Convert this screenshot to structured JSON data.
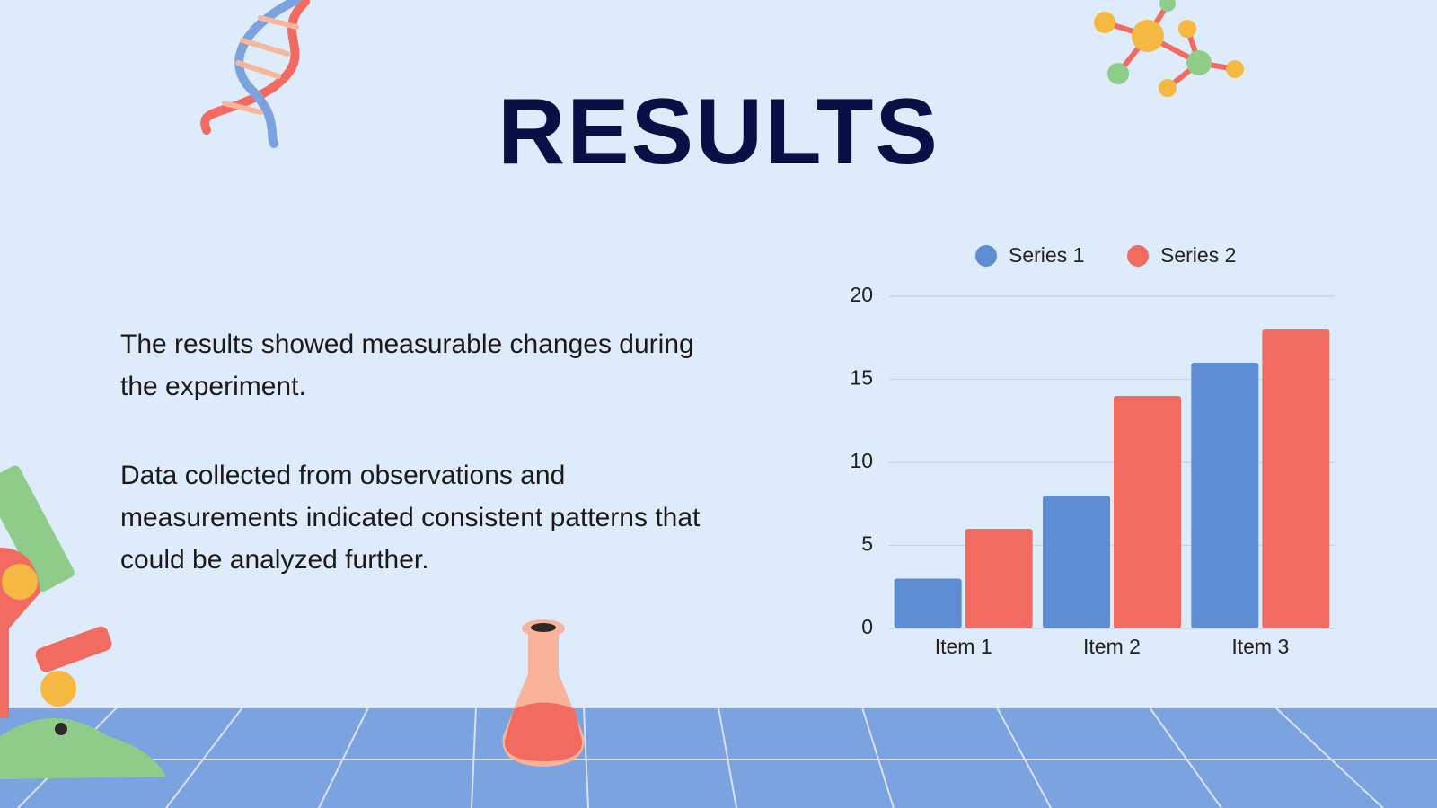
{
  "title": "RESULTS",
  "paragraphs": [
    "The results showed measurable changes during the experiment.",
    "Data collected from observations and measurements indicated consistent patterns that could be analyzed further."
  ],
  "chart_data": {
    "type": "bar",
    "categories": [
      "Item 1",
      "Item 2",
      "Item 3"
    ],
    "series": [
      {
        "name": "Series 1",
        "color": "#5f8dd3",
        "values": [
          3,
          8,
          16
        ]
      },
      {
        "name": "Series 2",
        "color": "#f26b61",
        "values": [
          6,
          14,
          18
        ]
      }
    ],
    "ylim": [
      0,
      20
    ],
    "yticks": [
      0,
      5,
      10,
      15,
      20
    ],
    "grid": true,
    "legend": "top"
  }
}
